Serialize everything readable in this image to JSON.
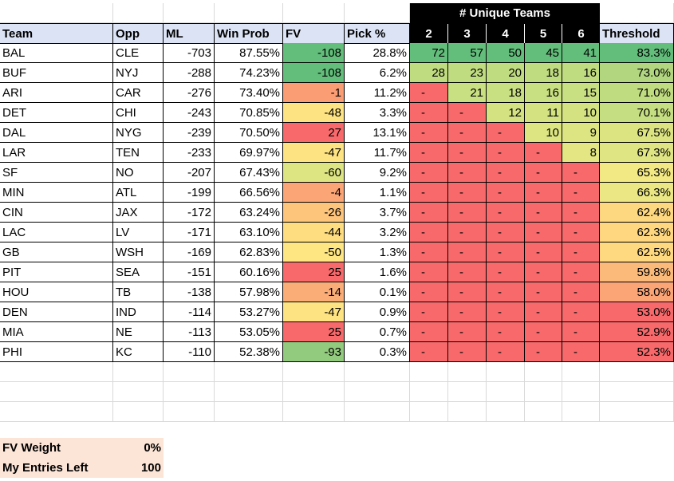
{
  "group_header": "# Unique Teams",
  "headers": {
    "team": "Team",
    "opp": "Opp",
    "ml": "ML",
    "win_prob": "Win Prob",
    "fv": "FV",
    "pick": "Pick %",
    "u2": "2",
    "u3": "3",
    "u4": "4",
    "u5": "5",
    "u6": "6",
    "threshold": "Threshold"
  },
  "rows": [
    {
      "team": "BAL",
      "opp": "CLE",
      "ml": "-703",
      "win_prob": "87.55%",
      "fv": "-108",
      "pick": "28.8%",
      "u": [
        "72",
        "57",
        "50",
        "45",
        "41"
      ],
      "threshold": "83.3%",
      "fv_color": "#63be7b",
      "u_colors": [
        "#63be7b",
        "#63be7b",
        "#63be7b",
        "#63be7b",
        "#63be7b"
      ],
      "th_color": "#63be7b"
    },
    {
      "team": "BUF",
      "opp": "NYJ",
      "ml": "-288",
      "win_prob": "74.23%",
      "fv": "-108",
      "pick": "6.2%",
      "u": [
        "28",
        "23",
        "20",
        "18",
        "16"
      ],
      "threshold": "73.0%",
      "fv_color": "#63be7b",
      "u_colors": [
        "#c0dc81",
        "#c0dc81",
        "#c0dc81",
        "#c0dc81",
        "#c0dc81"
      ],
      "th_color": "#b2d680"
    },
    {
      "team": "ARI",
      "opp": "CAR",
      "ml": "-276",
      "win_prob": "73.40%",
      "fv": "-1",
      "pick": "11.2%",
      "u": [
        "-",
        "21",
        "18",
        "16",
        "15"
      ],
      "threshold": "71.0%",
      "fv_color": "#fa9c74",
      "u_colors": [
        "#f8696b",
        "#c8df82",
        "#c8df82",
        "#c8df82",
        "#c8df82"
      ],
      "th_color": "#c0dc81"
    },
    {
      "team": "DET",
      "opp": "CHI",
      "ml": "-243",
      "win_prob": "70.85%",
      "fv": "-48",
      "pick": "3.3%",
      "u": [
        "-",
        "-",
        "12",
        "11",
        "10"
      ],
      "threshold": "70.1%",
      "fv_color": "#fee382",
      "u_colors": [
        "#f8696b",
        "#f8696b",
        "#d4e282",
        "#d4e282",
        "#d4e282"
      ],
      "th_color": "#c6de82"
    },
    {
      "team": "DAL",
      "opp": "NYG",
      "ml": "-239",
      "win_prob": "70.50%",
      "fv": "27",
      "pick": "13.1%",
      "u": [
        "-",
        "-",
        "-",
        "10",
        "9"
      ],
      "threshold": "67.5%",
      "fv_color": "#f8696b",
      "u_colors": [
        "#f8696b",
        "#f8696b",
        "#f8696b",
        "#dde583",
        "#dde583"
      ],
      "th_color": "#dce482"
    },
    {
      "team": "LAR",
      "opp": "TEN",
      "ml": "-233",
      "win_prob": "69.97%",
      "fv": "-47",
      "pick": "11.7%",
      "u": [
        "-",
        "-",
        "-",
        "-",
        "8"
      ],
      "threshold": "67.3%",
      "fv_color": "#fee382",
      "u_colors": [
        "#f8696b",
        "#f8696b",
        "#f8696b",
        "#f8696b",
        "#e3e683"
      ],
      "th_color": "#dfe583"
    },
    {
      "team": "SF",
      "opp": "NO",
      "ml": "-207",
      "win_prob": "67.43%",
      "fv": "-60",
      "pick": "9.2%",
      "u": [
        "-",
        "-",
        "-",
        "-",
        "-"
      ],
      "threshold": "65.3%",
      "fv_color": "#dde583",
      "u_colors": [
        "#f8696b",
        "#f8696b",
        "#f8696b",
        "#f8696b",
        "#f8696b"
      ],
      "th_color": "#f2e884"
    },
    {
      "team": "MIN",
      "opp": "ATL",
      "ml": "-199",
      "win_prob": "66.56%",
      "fv": "-4",
      "pick": "1.1%",
      "u": [
        "-",
        "-",
        "-",
        "-",
        "-"
      ],
      "threshold": "66.3%",
      "fv_color": "#fba576",
      "u_colors": [
        "#f8696b",
        "#f8696b",
        "#f8696b",
        "#f8696b",
        "#f8696b"
      ],
      "th_color": "#eae784"
    },
    {
      "team": "CIN",
      "opp": "JAX",
      "ml": "-172",
      "win_prob": "63.24%",
      "fv": "-26",
      "pick": "3.7%",
      "u": [
        "-",
        "-",
        "-",
        "-",
        "-"
      ],
      "threshold": "62.4%",
      "fv_color": "#fdc47c",
      "u_colors": [
        "#f8696b",
        "#f8696b",
        "#f8696b",
        "#f8696b",
        "#f8696b"
      ],
      "th_color": "#fed880"
    },
    {
      "team": "LAC",
      "opp": "LV",
      "ml": "-171",
      "win_prob": "63.10%",
      "fv": "-44",
      "pick": "3.2%",
      "u": [
        "-",
        "-",
        "-",
        "-",
        "-"
      ],
      "threshold": "62.3%",
      "fv_color": "#fedd81",
      "u_colors": [
        "#f8696b",
        "#f8696b",
        "#f8696b",
        "#f8696b",
        "#f8696b"
      ],
      "th_color": "#fed780"
    },
    {
      "team": "GB",
      "opp": "WSH",
      "ml": "-169",
      "win_prob": "62.83%",
      "fv": "-50",
      "pick": "1.3%",
      "u": [
        "-",
        "-",
        "-",
        "-",
        "-"
      ],
      "threshold": "62.5%",
      "fv_color": "#fee683",
      "u_colors": [
        "#f8696b",
        "#f8696b",
        "#f8696b",
        "#f8696b",
        "#f8696b"
      ],
      "th_color": "#fed980"
    },
    {
      "team": "PIT",
      "opp": "SEA",
      "ml": "-151",
      "win_prob": "60.16%",
      "fv": "25",
      "pick": "1.6%",
      "u": [
        "-",
        "-",
        "-",
        "-",
        "-"
      ],
      "threshold": "59.8%",
      "fv_color": "#f8696b",
      "u_colors": [
        "#f8696b",
        "#f8696b",
        "#f8696b",
        "#f8696b",
        "#f8696b"
      ],
      "th_color": "#fcba7a"
    },
    {
      "team": "HOU",
      "opp": "TB",
      "ml": "-138",
      "win_prob": "57.98%",
      "fv": "-14",
      "pick": "0.1%",
      "u": [
        "-",
        "-",
        "-",
        "-",
        "-"
      ],
      "threshold": "58.0%",
      "fv_color": "#fbad78",
      "u_colors": [
        "#f8696b",
        "#f8696b",
        "#f8696b",
        "#f8696b",
        "#f8696b"
      ],
      "th_color": "#fba476"
    },
    {
      "team": "DEN",
      "opp": "IND",
      "ml": "-114",
      "win_prob": "53.27%",
      "fv": "-47",
      "pick": "0.9%",
      "u": [
        "-",
        "-",
        "-",
        "-",
        "-"
      ],
      "threshold": "53.0%",
      "fv_color": "#fee382",
      "u_colors": [
        "#f8696b",
        "#f8696b",
        "#f8696b",
        "#f8696b",
        "#f8696b"
      ],
      "th_color": "#f8696b"
    },
    {
      "team": "MIA",
      "opp": "NE",
      "ml": "-113",
      "win_prob": "53.05%",
      "fv": "25",
      "pick": "0.7%",
      "u": [
        "-",
        "-",
        "-",
        "-",
        "-"
      ],
      "threshold": "52.9%",
      "fv_color": "#f8696b",
      "u_colors": [
        "#f8696b",
        "#f8696b",
        "#f8696b",
        "#f8696b",
        "#f8696b"
      ],
      "th_color": "#f8696b"
    },
    {
      "team": "PHI",
      "opp": "KC",
      "ml": "-110",
      "win_prob": "52.38%",
      "fv": "-93",
      "pick": "0.3%",
      "u": [
        "-",
        "-",
        "-",
        "-",
        "-"
      ],
      "threshold": "52.3%",
      "fv_color": "#93cb7e",
      "u_colors": [
        "#f8696b",
        "#f8696b",
        "#f8696b",
        "#f8696b",
        "#f8696b"
      ],
      "th_color": "#f8696b"
    }
  ],
  "settings": {
    "fv_weight_label": "FV Weight",
    "fv_weight_value": "0%",
    "entries_label": "My Entries Left",
    "entries_value": "100"
  }
}
